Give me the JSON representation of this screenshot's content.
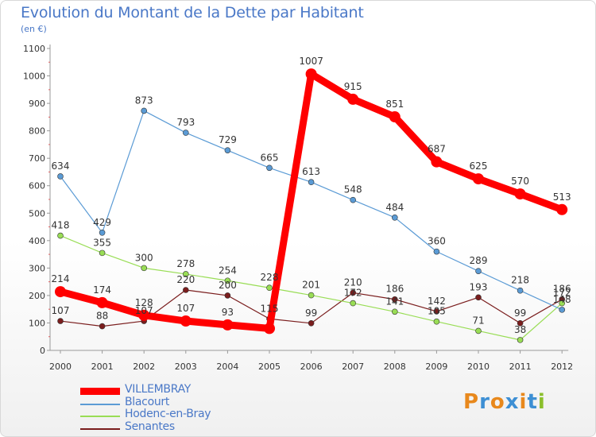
{
  "header": {
    "title": "Evolution du Montant de la Dette par Habitant",
    "unit": "(en €)"
  },
  "logo": {
    "letters": [
      "P",
      "r",
      "o",
      "x",
      "i",
      "t",
      "i"
    ],
    "colors": [
      "#e8881c",
      "#3d8fd4",
      "#e8881c",
      "#3d8fd4",
      "#e8881c",
      "#3d8fd4",
      "#8bbf2c"
    ]
  },
  "chart_data": {
    "type": "line",
    "categories": [
      "2000",
      "2001",
      "2002",
      "2003",
      "2004",
      "2005",
      "2006",
      "2007",
      "2008",
      "2009",
      "2010",
      "2011",
      "2012"
    ],
    "ylim": [
      0,
      1100
    ],
    "yticks": [
      0,
      100,
      200,
      300,
      400,
      500,
      600,
      700,
      800,
      900,
      1000,
      1100
    ],
    "grid": false,
    "legend_position": "bottom-left",
    "series": [
      {
        "name": "VILLEMBRAY",
        "color": "#ff0000",
        "values": [
          214,
          174,
          128,
          107,
          93,
          80,
          1007,
          915,
          851,
          687,
          625,
          570,
          513
        ],
        "labels": [
          "214",
          "174",
          "128",
          "107",
          "93",
          "",
          "1007",
          "915",
          "851",
          "687",
          "625",
          "570",
          "513"
        ]
      },
      {
        "name": "Blacourt",
        "color": "#5b9bd5",
        "values": [
          634,
          429,
          873,
          793,
          729,
          665,
          613,
          548,
          484,
          360,
          289,
          218,
          148
        ],
        "labels": [
          "634",
          "429",
          "873",
          "793",
          "729",
          "665",
          "613",
          "548",
          "484",
          "360",
          "289",
          "218",
          "148"
        ]
      },
      {
        "name": "Hodenc-en-Bray",
        "color": "#99dd55",
        "values": [
          418,
          355,
          300,
          278,
          254,
          228,
          201,
          172,
          141,
          105,
          71,
          38,
          172
        ],
        "labels": [
          "418",
          "355",
          "300",
          "278",
          "254",
          "228",
          "201",
          "172",
          "141",
          "105",
          "71",
          "38",
          "172"
        ]
      },
      {
        "name": "Senantes",
        "color": "#7a1d1d",
        "values": [
          107,
          88,
          107,
          220,
          200,
          115,
          99,
          210,
          186,
          142,
          193,
          99,
          186
        ],
        "labels": [
          "107",
          "88",
          "107",
          "220",
          "200",
          "115",
          "99",
          "210",
          "186",
          "142",
          "193",
          "99",
          "186"
        ]
      }
    ]
  }
}
